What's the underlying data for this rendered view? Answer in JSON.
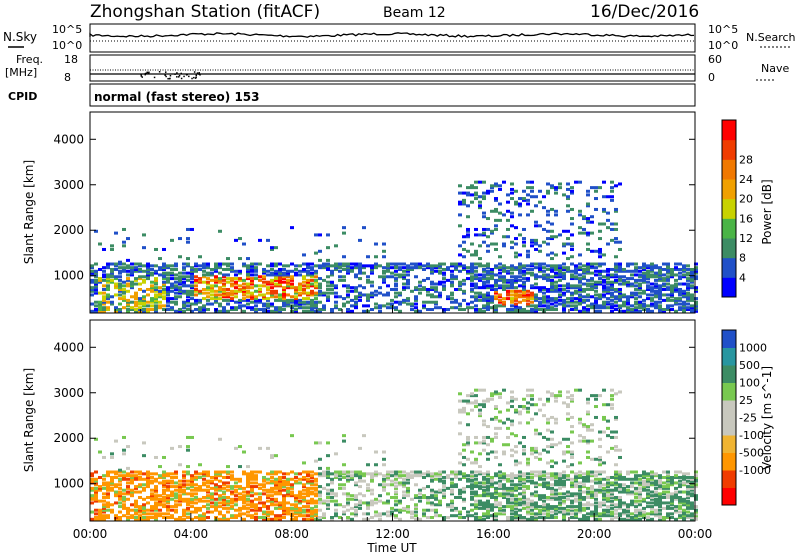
{
  "header": {
    "station": "Zhongshan Station (fitACF)",
    "beam": "Beam 12",
    "date": "16/Dec/2016"
  },
  "noise_panel": {
    "left_label": "N.Sky",
    "left_ticks": [
      "10^5",
      "10^0"
    ],
    "right_label": "N.Search",
    "right_ticks": [
      "10^5",
      "10^0"
    ]
  },
  "freq_panel": {
    "left_label_1": "Freq.",
    "left_label_2": "[MHz]",
    "left_ticks": [
      "18",
      "8"
    ],
    "right_label": "Nave",
    "right_ticks": [
      "60",
      "0"
    ]
  },
  "cpid": {
    "label": "CPID",
    "text": "normal (fast stereo) 153"
  },
  "colors": {
    "power_scale": [
      "#0000ff",
      "#2050c8",
      "#3c8c64",
      "#4ab446",
      "#c8d200",
      "#f0a000",
      "#f07800",
      "#f03c00",
      "#ff0000"
    ],
    "velocity_scale": [
      "#ff0000",
      "#f03c00",
      "#ff9600",
      "#f0b432",
      "#c8c8be",
      "#c8c8be",
      "#78c850",
      "#3c8c64",
      "#2896a0",
      "#2050c8"
    ]
  },
  "chart_data": [
    {
      "type": "heatmap",
      "title": "Power",
      "ylabel": "Slant Range [km]",
      "xlabel": "",
      "x_ticks": [],
      "y_ticks": [
        "1000",
        "2000",
        "3000",
        "4000"
      ],
      "xlim": [
        "00:00",
        "00:00"
      ],
      "ylim": [
        180,
        4600
      ],
      "colorbar": {
        "label": "Power [dB]",
        "ticks": [
          "4",
          "8",
          "12",
          "16",
          "20",
          "24",
          "28"
        ],
        "range": [
          0,
          30
        ]
      },
      "features": [
        {
          "name": "low-range echo band",
          "x_hours": [
            0,
            24
          ],
          "range_km": [
            300,
            1300
          ]
        },
        {
          "name": "strong echoes",
          "x_hours": [
            4,
            9
          ],
          "range_km": [
            500,
            1000
          ],
          "power_db": 28
        },
        {
          "name": "strong echoes",
          "x_hours": [
            16,
            17.5
          ],
          "range_km": [
            400,
            700
          ],
          "power_db": 26
        },
        {
          "name": "far-range patches",
          "x_hours": [
            15,
            20.5
          ],
          "range_km": [
            1500,
            3100
          ]
        }
      ]
    },
    {
      "type": "heatmap",
      "title": "Velocity",
      "ylabel": "Slant Range [km]",
      "xlabel": "Time UT",
      "x_ticks": [
        "00:00",
        "04:00",
        "08:00",
        "12:00",
        "16:00",
        "20:00",
        "00:00"
      ],
      "y_ticks": [
        "1000",
        "2000",
        "3000",
        "4000"
      ],
      "xlim": [
        "00:00",
        "00:00"
      ],
      "ylim": [
        180,
        4600
      ],
      "colorbar": {
        "label": "Velocity [m s^-1]",
        "ticks": [
          "1000",
          "500",
          "100",
          "25",
          "-25",
          "-100",
          "-500",
          "-1000"
        ],
        "range": [
          -1000,
          1000
        ]
      },
      "features": [
        {
          "name": "negative velocities",
          "x_hours": [
            0,
            9
          ],
          "range_km": [
            300,
            1300
          ],
          "velocity_mps": -300
        },
        {
          "name": "positive velocities",
          "x_hours": [
            13,
            24
          ],
          "range_km": [
            300,
            1200
          ],
          "velocity_mps": 300
        },
        {
          "name": "mixed far-range",
          "x_hours": [
            15,
            21
          ],
          "range_km": [
            1500,
            3100
          ]
        }
      ]
    }
  ]
}
